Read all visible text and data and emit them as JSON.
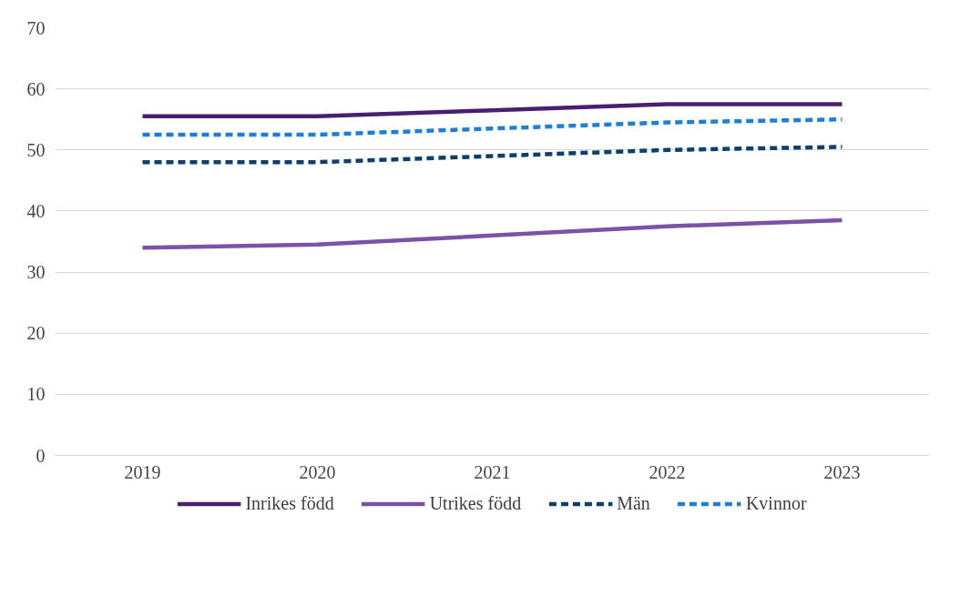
{
  "chart_data": {
    "type": "line",
    "categories": [
      "2019",
      "2020",
      "2021",
      "2022",
      "2023"
    ],
    "series": [
      {
        "name": "Inrikes född",
        "color": "#4b1f6f",
        "values": [
          55.5,
          55.5,
          56.5,
          57.5,
          57.5
        ],
        "line_style": "solid"
      },
      {
        "name": "Utrikes född",
        "color": "#7b52a6",
        "values": [
          34,
          34.5,
          36,
          37.5,
          38.5
        ],
        "line_style": "solid"
      },
      {
        "name": "Män",
        "color": "#0b3f6e",
        "values": [
          48,
          48,
          49,
          50,
          50.5
        ],
        "line_style": "dashed"
      },
      {
        "name": "Kvinnor",
        "color": "#1d7fd6",
        "values": [
          52.5,
          52.5,
          53.5,
          54.5,
          55
        ],
        "line_style": "dashed"
      }
    ],
    "ylim": [
      0,
      70
    ],
    "yticks": [
      0,
      10,
      20,
      30,
      40,
      50,
      60,
      70
    ],
    "grid": "y",
    "legend": "bottom"
  }
}
